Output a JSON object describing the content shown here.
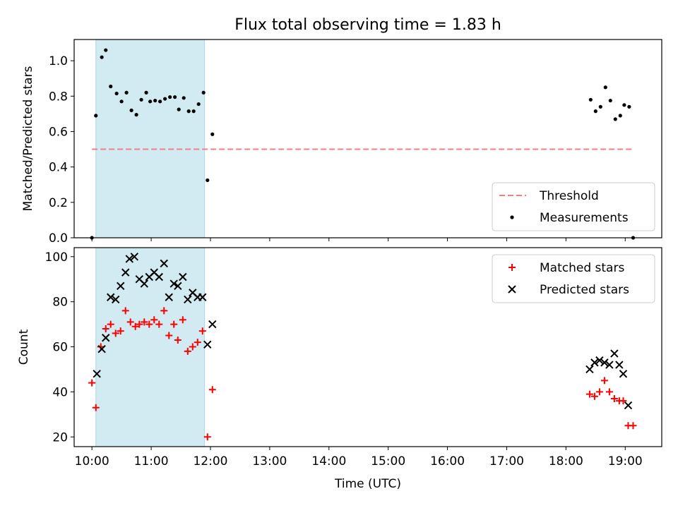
{
  "title": "Flux total observing time = 1.83 h",
  "colors": {
    "threshold": "#f08080",
    "measurements": "#000000",
    "matched": "#ff0000",
    "predicted": "#000000",
    "shaded_band": "#add8e6"
  },
  "chart_data": [
    {
      "type": "scatter",
      "panel": "top",
      "ylabel": "Matched/Predicted stars",
      "ylim": [
        0,
        1.12
      ],
      "yticks": [
        "0.0",
        "0.2",
        "0.4",
        "0.6",
        "0.8",
        "1.0"
      ],
      "xlim": [
        "09:42",
        "19:37"
      ],
      "shaded_interval": [
        "10:04",
        "11:54"
      ],
      "legend": {
        "position": "bottom-right",
        "entries": [
          "Threshold",
          "Measurements"
        ]
      },
      "threshold": {
        "name": "Threshold",
        "y": 0.5,
        "x": [
          "10:00",
          "19:07"
        ],
        "style": "dashed"
      },
      "series": [
        {
          "name": "Measurements",
          "points": [
            [
              "10:00",
              0.0
            ],
            [
              "10:04",
              0.69
            ],
            [
              "10:10",
              1.02
            ],
            [
              "10:14",
              1.06
            ],
            [
              "10:19",
              0.855
            ],
            [
              "10:25",
              0.815
            ],
            [
              "10:30",
              0.77
            ],
            [
              "10:35",
              0.82
            ],
            [
              "10:40",
              0.72
            ],
            [
              "10:45",
              0.695
            ],
            [
              "10:50",
              0.78
            ],
            [
              "10:55",
              0.82
            ],
            [
              "10:59",
              0.77
            ],
            [
              "11:04",
              0.775
            ],
            [
              "11:09",
              0.77
            ],
            [
              "11:14",
              0.785
            ],
            [
              "11:19",
              0.795
            ],
            [
              "11:24",
              0.795
            ],
            [
              "11:28",
              0.725
            ],
            [
              "11:33",
              0.79
            ],
            [
              "11:38",
              0.715
            ],
            [
              "11:43",
              0.715
            ],
            [
              "11:48",
              0.755
            ],
            [
              "11:53",
              0.82
            ],
            [
              "11:57",
              0.325
            ],
            [
              "12:02",
              0.585
            ],
            [
              "18:25",
              0.78
            ],
            [
              "18:30",
              0.715
            ],
            [
              "18:35",
              0.74
            ],
            [
              "18:40",
              0.85
            ],
            [
              "18:45",
              0.775
            ],
            [
              "18:50",
              0.67
            ],
            [
              "18:55",
              0.69
            ],
            [
              "18:59",
              0.75
            ],
            [
              "19:04",
              0.74
            ],
            [
              "19:08",
              0.0
            ]
          ]
        }
      ]
    },
    {
      "type": "scatter",
      "panel": "bottom",
      "xlabel": "Time (UTC)",
      "ylabel": "Count",
      "ylim": [
        15.7,
        104
      ],
      "yticks": [
        "20",
        "40",
        "60",
        "80",
        "100"
      ],
      "xlim": [
        "09:42",
        "19:37"
      ],
      "xticks": [
        "10:00",
        "11:00",
        "12:00",
        "13:00",
        "14:00",
        "15:00",
        "16:00",
        "17:00",
        "18:00",
        "19:00"
      ],
      "shaded_interval": [
        "10:04",
        "11:54"
      ],
      "legend": {
        "position": "top-right",
        "entries": [
          "Matched stars",
          "Predicted stars"
        ]
      },
      "series": [
        {
          "name": "Matched stars",
          "marker": "plus",
          "points": [
            [
              "10:00",
              44
            ],
            [
              "10:04",
              33
            ],
            [
              "10:09",
              60
            ],
            [
              "10:14",
              68
            ],
            [
              "10:19",
              70
            ],
            [
              "10:24",
              66
            ],
            [
              "10:29",
              67
            ],
            [
              "10:34",
              76
            ],
            [
              "10:39",
              71
            ],
            [
              "10:44",
              69
            ],
            [
              "10:48",
              70
            ],
            [
              "10:53",
              71
            ],
            [
              "10:58",
              70
            ],
            [
              "11:03",
              72
            ],
            [
              "11:08",
              70
            ],
            [
              "11:13",
              76
            ],
            [
              "11:18",
              65
            ],
            [
              "11:23",
              70
            ],
            [
              "11:27",
              63
            ],
            [
              "11:32",
              72
            ],
            [
              "11:37",
              58
            ],
            [
              "11:42",
              60
            ],
            [
              "11:47",
              62
            ],
            [
              "11:52",
              67
            ],
            [
              "11:57",
              20
            ],
            [
              "12:02",
              41
            ],
            [
              "18:24",
              39
            ],
            [
              "18:29",
              38
            ],
            [
              "18:34",
              40
            ],
            [
              "18:39",
              45
            ],
            [
              "18:44",
              40
            ],
            [
              "18:49",
              37
            ],
            [
              "18:54",
              36
            ],
            [
              "18:58",
              36
            ],
            [
              "19:03",
              25
            ],
            [
              "19:08",
              25
            ]
          ]
        },
        {
          "name": "Predicted stars",
          "marker": "x",
          "points": [
            [
              "10:05",
              48
            ],
            [
              "10:10",
              59
            ],
            [
              "10:14",
              64
            ],
            [
              "10:19",
              82
            ],
            [
              "10:24",
              81
            ],
            [
              "10:29",
              87
            ],
            [
              "10:34",
              93
            ],
            [
              "10:38",
              99
            ],
            [
              "10:43",
              100
            ],
            [
              "10:48",
              90
            ],
            [
              "10:53",
              88
            ],
            [
              "10:58",
              91
            ],
            [
              "11:03",
              93
            ],
            [
              "11:08",
              91
            ],
            [
              "11:13",
              97
            ],
            [
              "11:18",
              82
            ],
            [
              "11:23",
              88
            ],
            [
              "11:27",
              87
            ],
            [
              "11:32",
              91
            ],
            [
              "11:37",
              81
            ],
            [
              "11:42",
              84
            ],
            [
              "11:47",
              82
            ],
            [
              "11:52",
              82
            ],
            [
              "11:57",
              61
            ],
            [
              "12:02",
              70
            ],
            [
              "18:24",
              50
            ],
            [
              "18:29",
              53
            ],
            [
              "18:34",
              54
            ],
            [
              "18:39",
              53
            ],
            [
              "18:44",
              52
            ],
            [
              "18:49",
              57
            ],
            [
              "18:54",
              52
            ],
            [
              "18:58",
              48
            ],
            [
              "19:03",
              34
            ]
          ]
        }
      ]
    }
  ]
}
